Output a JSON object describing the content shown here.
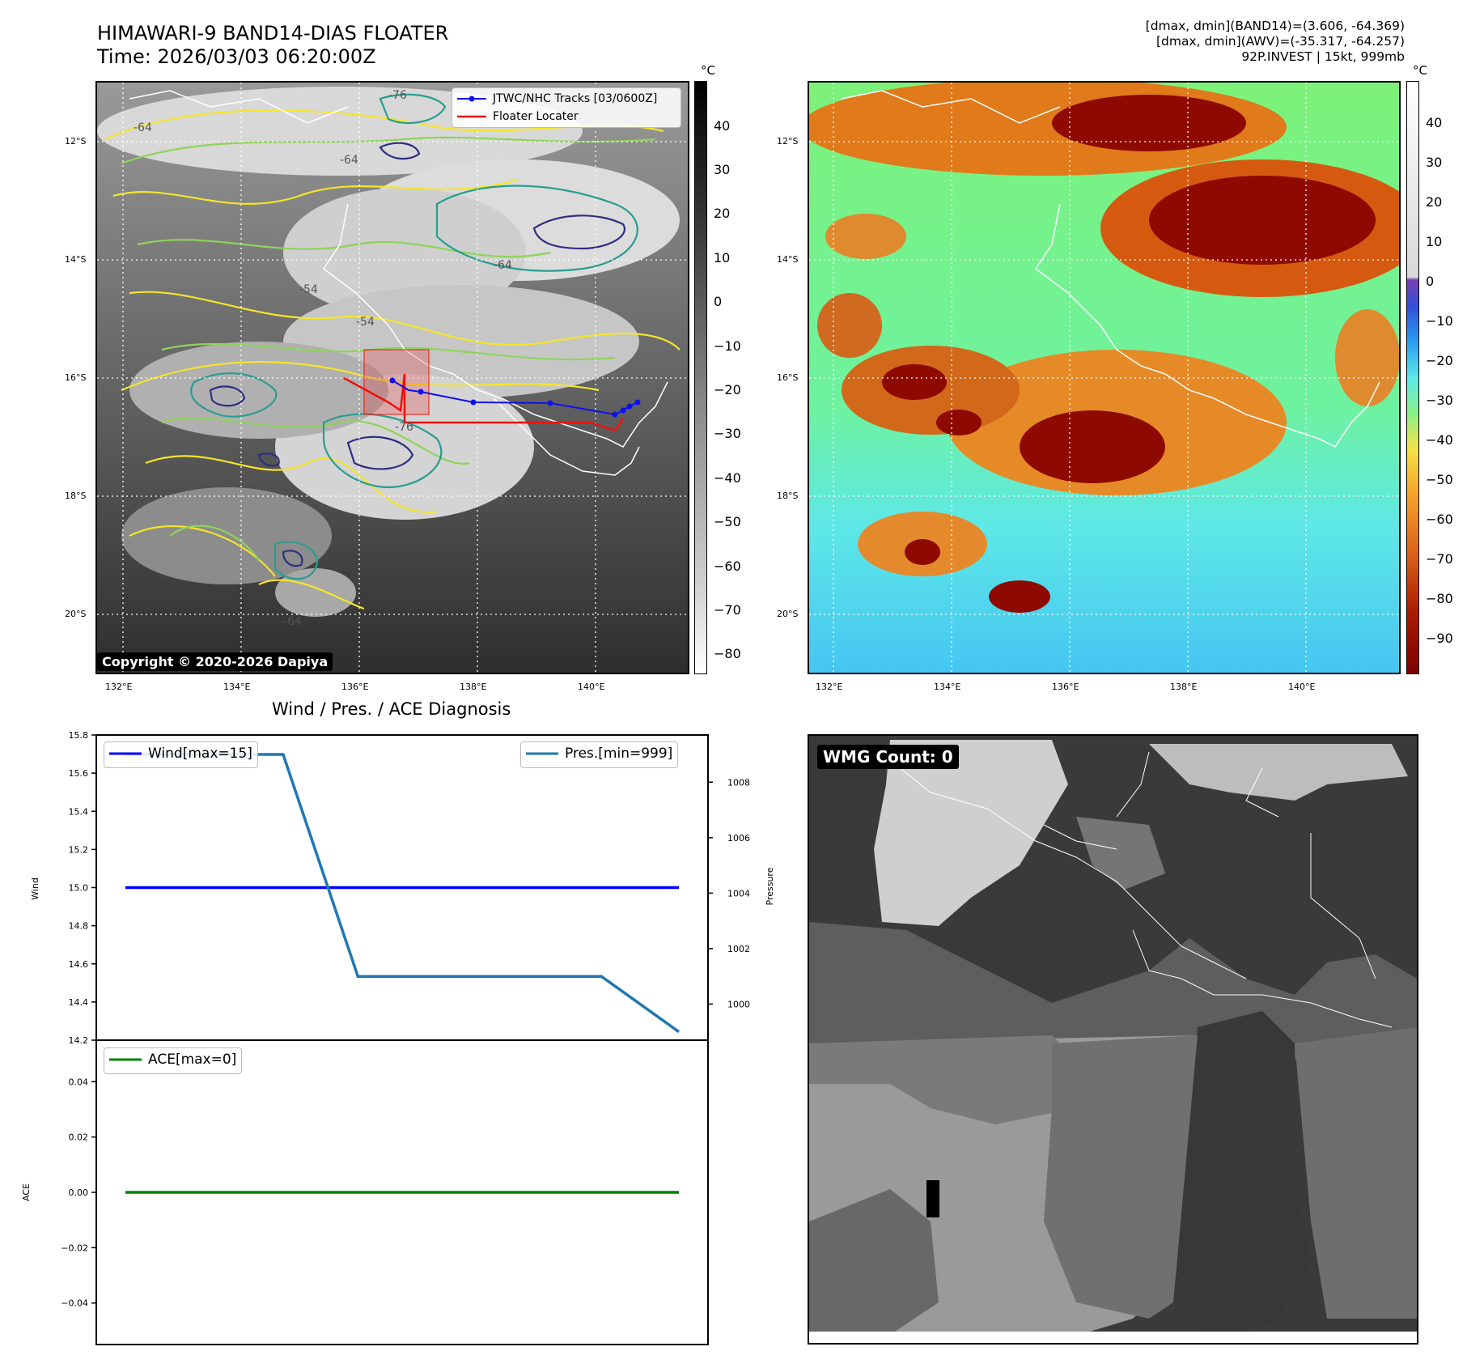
{
  "header": {
    "title_line1": "HIMAWARI-9 BAND14-DIAS FLOATER",
    "title_line2": "Time: 2026/03/03 06:20:00Z",
    "info_line1": "[dmax, dmin](BAND14)=(3.606, -64.369)",
    "info_line2": "[dmax, dmin](AWV)=(-35.317, -64.257)",
    "info_line3": "92P.INVEST | 15kt, 999mb"
  },
  "maps": {
    "lat_labels": [
      "12°S",
      "14°S",
      "16°S",
      "18°S",
      "20°S"
    ],
    "lon_labels": [
      "132°E",
      "134°E",
      "136°E",
      "138°E",
      "140°E"
    ],
    "unit": "°C",
    "contour_labels": [
      "-64",
      "-64",
      "-54",
      "-76",
      "-64",
      "-54",
      "-64",
      "-76"
    ],
    "colors": {
      "contour_yellow": "#f4e52a",
      "contour_lightgreen": "#8fd35a",
      "contour_teal": "#2a9d8f",
      "contour_navy": "#2e2f7f",
      "track_jtwc": "#1010ee",
      "track_floater": "#ee1111"
    }
  },
  "ir_panel": {
    "colorbar_ticks": [
      "40",
      "30",
      "20",
      "10",
      "0",
      "−10",
      "−20",
      "−30",
      "−40",
      "−50",
      "−60",
      "−70",
      "−80"
    ],
    "legend": {
      "track_label": "JTWC/NHC Tracks [03/0600Z]",
      "floater_label": "Floater Locater"
    },
    "copyright": "Copyright © 2020-2026 Dapiya"
  },
  "awv_panel": {
    "colorbar_ticks": [
      "40",
      "30",
      "20",
      "10",
      "0",
      "−10",
      "−20",
      "−30",
      "−40",
      "−50",
      "−60",
      "−70",
      "−80",
      "−90"
    ]
  },
  "diagnosis": {
    "title": "Wind / Pres. / ACE Diagnosis",
    "wind_ylabel": "Wind",
    "pressure_ylabel": "Pressure",
    "ace_ylabel": "ACE",
    "wind_legend": "Wind[max=15]",
    "pres_legend": "Pres.[min=999]",
    "ace_legend": "ACE[max=0]",
    "wind_ticks": [
      "15.8",
      "15.6",
      "15.4",
      "15.2",
      "15.0",
      "14.8",
      "14.6",
      "14.4",
      "14.2"
    ],
    "pres_ticks": [
      "1008",
      "1006",
      "1004",
      "1002",
      "1000"
    ],
    "ace_ticks": [
      "0.04",
      "0.02",
      "0.00",
      "−0.02",
      "−0.04"
    ],
    "colors": {
      "wind": "#0000ff",
      "pres": "#1f77b4",
      "ace": "#008000"
    }
  },
  "wmg": {
    "count_label": "WMG Count: 0"
  },
  "chart_data": [
    {
      "type": "line",
      "title": "Wind / Pres. / ACE Diagnosis",
      "ylabel": "Wind",
      "ylim": [
        14.2,
        15.8
      ],
      "series": [
        {
          "name": "Wind[max=15]",
          "x": [
            0,
            1,
            2,
            3,
            4,
            5,
            6,
            7,
            8
          ],
          "values": [
            15,
            15,
            15,
            15,
            15,
            15,
            15,
            15,
            15
          ]
        }
      ]
    },
    {
      "type": "line",
      "ylabel": "Pressure",
      "ylim": [
        998.7,
        1009.7
      ],
      "series": [
        {
          "name": "Pres.[min=999]",
          "x": [
            0,
            2.85,
            4.2,
            8.6,
            10
          ],
          "values": [
            1009,
            1009,
            1001,
            1001,
            999
          ]
        }
      ]
    },
    {
      "type": "line",
      "ylabel": "ACE",
      "ylim": [
        -0.055,
        0.055
      ],
      "series": [
        {
          "name": "ACE[max=0]",
          "x": [
            0,
            1,
            2,
            3,
            4,
            5,
            6,
            7,
            8
          ],
          "values": [
            0,
            0,
            0,
            0,
            0,
            0,
            0,
            0,
            0
          ]
        }
      ]
    }
  ]
}
